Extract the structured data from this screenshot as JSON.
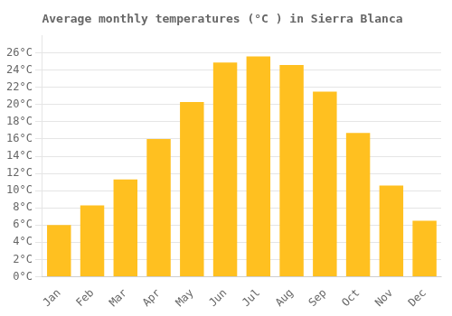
{
  "chart_data": {
    "type": "bar",
    "title": "Average monthly temperatures (°C ) in Sierra Blanca",
    "categories": [
      "Jan",
      "Feb",
      "Mar",
      "Apr",
      "May",
      "Jun",
      "Jul",
      "Aug",
      "Sep",
      "Oct",
      "Nov",
      "Dec"
    ],
    "values": [
      6.0,
      8.3,
      11.3,
      16.0,
      20.3,
      24.9,
      25.6,
      24.6,
      21.5,
      16.7,
      10.6,
      6.5
    ],
    "color": "#FFC020",
    "ylim": [
      0,
      28
    ],
    "yticks": [
      {
        "value": 0,
        "label": "0°C"
      },
      {
        "value": 2,
        "label": "2°C"
      },
      {
        "value": 4,
        "label": "4°C"
      },
      {
        "value": 6,
        "label": "6°C"
      },
      {
        "value": 8,
        "label": "8°C"
      },
      {
        "value": 10,
        "label": "10°C"
      },
      {
        "value": 12,
        "label": "12°C"
      },
      {
        "value": 14,
        "label": "14°C"
      },
      {
        "value": 16,
        "label": "16°C"
      },
      {
        "value": 18,
        "label": "18°C"
      },
      {
        "value": 20,
        "label": "20°C"
      },
      {
        "value": 22,
        "label": "22°C"
      },
      {
        "value": 24,
        "label": "24°C"
      },
      {
        "value": 26,
        "label": "26°C"
      }
    ],
    "grid": true
  }
}
